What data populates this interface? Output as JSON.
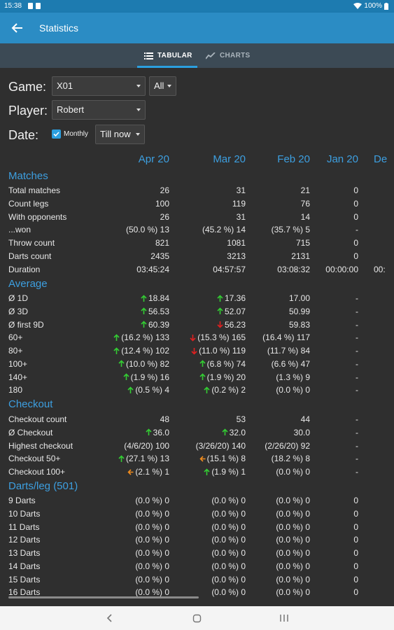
{
  "status": {
    "time": "15:38",
    "battery": "100%"
  },
  "appbar": {
    "title": "Statistics"
  },
  "tabs": [
    {
      "label": "TABULAR",
      "icon": "list-icon"
    },
    {
      "label": "CHARTS",
      "icon": "chart-line-icon"
    }
  ],
  "filters": {
    "game_label": "Game:",
    "game_value": "X01",
    "game_mode": "All",
    "player_label": "Player:",
    "player_value": "Robert",
    "date_label": "Date:",
    "monthly_label": "Monthly",
    "monthly_checked": true,
    "date_range": "Till now"
  },
  "columns": [
    "Apr 20",
    "Mar 20",
    "Feb 20",
    "Jan 20",
    "De"
  ],
  "sections": [
    {
      "title": "Matches",
      "rows": [
        {
          "label": "Total matches",
          "cells": [
            {
              "v": "26"
            },
            {
              "v": "31"
            },
            {
              "v": "21"
            },
            {
              "v": "0"
            },
            {
              "v": ""
            }
          ]
        },
        {
          "label": "Count legs",
          "cells": [
            {
              "v": "100"
            },
            {
              "v": "119"
            },
            {
              "v": "76"
            },
            {
              "v": "0"
            },
            {
              "v": ""
            }
          ]
        },
        {
          "label": "With opponents",
          "cells": [
            {
              "v": "26"
            },
            {
              "v": "31"
            },
            {
              "v": "14"
            },
            {
              "v": "0"
            },
            {
              "v": ""
            }
          ]
        },
        {
          "label": "...won",
          "cells": [
            {
              "v": "(50.0 %) 13"
            },
            {
              "v": "(45.2 %) 14"
            },
            {
              "v": "(35.7 %) 5"
            },
            {
              "v": "-"
            },
            {
              "v": ""
            }
          ]
        },
        {
          "label": "Throw count",
          "cells": [
            {
              "v": "821"
            },
            {
              "v": "1081"
            },
            {
              "v": "715"
            },
            {
              "v": "0"
            },
            {
              "v": ""
            }
          ]
        },
        {
          "label": "Darts count",
          "cells": [
            {
              "v": "2435"
            },
            {
              "v": "3213"
            },
            {
              "v": "2131"
            },
            {
              "v": "0"
            },
            {
              "v": ""
            }
          ]
        },
        {
          "label": "Duration",
          "cells": [
            {
              "v": "03:45:24"
            },
            {
              "v": "04:57:57"
            },
            {
              "v": "03:08:32"
            },
            {
              "v": "00:00:00"
            },
            {
              "v": "00:"
            }
          ]
        }
      ]
    },
    {
      "title": "Average",
      "rows": [
        {
          "label": "Ø 1D",
          "cells": [
            {
              "v": "18.84",
              "t": "up"
            },
            {
              "v": "17.36",
              "t": "up"
            },
            {
              "v": "17.00"
            },
            {
              "v": "-"
            },
            {
              "v": ""
            }
          ]
        },
        {
          "label": "Ø 3D",
          "cells": [
            {
              "v": "56.53",
              "t": "up"
            },
            {
              "v": "52.07",
              "t": "up"
            },
            {
              "v": "50.99"
            },
            {
              "v": "-"
            },
            {
              "v": ""
            }
          ]
        },
        {
          "label": "Ø first 9D",
          "cells": [
            {
              "v": "60.39",
              "t": "up"
            },
            {
              "v": "56.23",
              "t": "down"
            },
            {
              "v": "59.83"
            },
            {
              "v": "-"
            },
            {
              "v": ""
            }
          ]
        },
        {
          "label": "60+",
          "cells": [
            {
              "v": "(16.2 %) 133",
              "t": "up"
            },
            {
              "v": "(15.3 %) 165",
              "t": "down"
            },
            {
              "v": "(16.4 %) 117"
            },
            {
              "v": "-"
            },
            {
              "v": ""
            }
          ]
        },
        {
          "label": "80+",
          "cells": [
            {
              "v": "(12.4 %) 102",
              "t": "up"
            },
            {
              "v": "(11.0 %) 119",
              "t": "down"
            },
            {
              "v": "(11.7 %) 84"
            },
            {
              "v": "-"
            },
            {
              "v": ""
            }
          ]
        },
        {
          "label": "100+",
          "cells": [
            {
              "v": "(10.0 %) 82",
              "t": "up"
            },
            {
              "v": "(6.8 %) 74",
              "t": "up"
            },
            {
              "v": "(6.6 %) 47"
            },
            {
              "v": "-"
            },
            {
              "v": ""
            }
          ]
        },
        {
          "label": "140+",
          "cells": [
            {
              "v": "(1.9 %) 16",
              "t": "up"
            },
            {
              "v": "(1.9 %) 20",
              "t": "up"
            },
            {
              "v": "(1.3 %) 9"
            },
            {
              "v": "-"
            },
            {
              "v": ""
            }
          ]
        },
        {
          "label": "180",
          "cells": [
            {
              "v": "(0.5 %) 4",
              "t": "up"
            },
            {
              "v": "(0.2 %) 2",
              "t": "up"
            },
            {
              "v": "(0.0 %) 0"
            },
            {
              "v": "-"
            },
            {
              "v": ""
            }
          ]
        }
      ]
    },
    {
      "title": "Checkout",
      "rows": [
        {
          "label": "Checkout count",
          "cells": [
            {
              "v": "48"
            },
            {
              "v": "53"
            },
            {
              "v": "44"
            },
            {
              "v": "-"
            },
            {
              "v": ""
            }
          ]
        },
        {
          "label": "Ø Checkout",
          "cells": [
            {
              "v": "36.0",
              "t": "up"
            },
            {
              "v": "32.0",
              "t": "up"
            },
            {
              "v": "30.0"
            },
            {
              "v": "-"
            },
            {
              "v": ""
            }
          ]
        },
        {
          "label": "Highest checkout",
          "cells": [
            {
              "v": "(4/6/20) 100"
            },
            {
              "v": "(3/26/20) 140"
            },
            {
              "v": "(2/26/20) 92"
            },
            {
              "v": "-"
            },
            {
              "v": ""
            }
          ]
        },
        {
          "label": "Checkout 50+",
          "cells": [
            {
              "v": "(27.1 %) 13",
              "t": "up"
            },
            {
              "v": "(15.1 %) 8",
              "t": "left"
            },
            {
              "v": "(18.2 %) 8"
            },
            {
              "v": "-"
            },
            {
              "v": ""
            }
          ]
        },
        {
          "label": "Checkout 100+",
          "cells": [
            {
              "v": "(2.1 %) 1",
              "t": "left"
            },
            {
              "v": "(1.9 %) 1",
              "t": "up"
            },
            {
              "v": "(0.0 %) 0"
            },
            {
              "v": "-"
            },
            {
              "v": ""
            }
          ]
        }
      ]
    },
    {
      "title": "Darts/leg (501)",
      "rows": [
        {
          "label": "9 Darts",
          "cells": [
            {
              "v": "(0.0 %) 0"
            },
            {
              "v": "(0.0 %) 0"
            },
            {
              "v": "(0.0 %) 0"
            },
            {
              "v": "0"
            },
            {
              "v": ""
            }
          ]
        },
        {
          "label": "10 Darts",
          "cells": [
            {
              "v": "(0.0 %) 0"
            },
            {
              "v": "(0.0 %) 0"
            },
            {
              "v": "(0.0 %) 0"
            },
            {
              "v": "0"
            },
            {
              "v": ""
            }
          ]
        },
        {
          "label": "11 Darts",
          "cells": [
            {
              "v": "(0.0 %) 0"
            },
            {
              "v": "(0.0 %) 0"
            },
            {
              "v": "(0.0 %) 0"
            },
            {
              "v": "0"
            },
            {
              "v": ""
            }
          ]
        },
        {
          "label": "12 Darts",
          "cells": [
            {
              "v": "(0.0 %) 0"
            },
            {
              "v": "(0.0 %) 0"
            },
            {
              "v": "(0.0 %) 0"
            },
            {
              "v": "0"
            },
            {
              "v": ""
            }
          ]
        },
        {
          "label": "13 Darts",
          "cells": [
            {
              "v": "(0.0 %) 0"
            },
            {
              "v": "(0.0 %) 0"
            },
            {
              "v": "(0.0 %) 0"
            },
            {
              "v": "0"
            },
            {
              "v": ""
            }
          ]
        },
        {
          "label": "14 Darts",
          "cells": [
            {
              "v": "(0.0 %) 0"
            },
            {
              "v": "(0.0 %) 0"
            },
            {
              "v": "(0.0 %) 0"
            },
            {
              "v": "0"
            },
            {
              "v": ""
            }
          ]
        },
        {
          "label": "15 Darts",
          "cells": [
            {
              "v": "(0.0 %) 0"
            },
            {
              "v": "(0.0 %) 0"
            },
            {
              "v": "(0.0 %) 0"
            },
            {
              "v": "0"
            },
            {
              "v": ""
            }
          ]
        },
        {
          "label": "16 Darts",
          "cells": [
            {
              "v": "(0.0 %) 0"
            },
            {
              "v": "(0.0 %) 0"
            },
            {
              "v": "(0.0 %) 0"
            },
            {
              "v": "0"
            },
            {
              "v": ""
            }
          ]
        }
      ]
    }
  ],
  "colors": {
    "up": "#33cc33",
    "down": "#e02020",
    "left": "#f08c1e",
    "accent": "#3d9fe0",
    "appbar": "#2b8cc4"
  }
}
